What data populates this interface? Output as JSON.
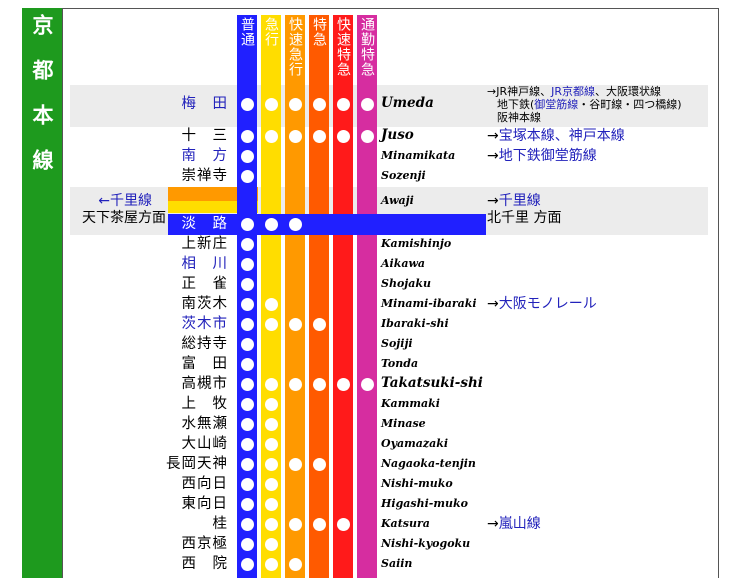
{
  "line_name": "京都本線",
  "train_types": [
    "普通",
    "急行",
    "快速急行",
    "特急",
    "快速特急",
    "通勤特急"
  ],
  "stations": [
    {
      "name": "梅　田",
      "link": true,
      "romaji": "Umeda",
      "stops": [
        true,
        true,
        true,
        true,
        true,
        true
      ],
      "transfers": [
        [
          {
            "text": "→JR神戸線、"
          },
          {
            "text": "JR京都線",
            "link": true
          },
          {
            "text": "、大阪環状線"
          }
        ],
        [
          {
            "text": "地下鉄("
          },
          {
            "text": "御堂筋線",
            "link": true
          },
          {
            "text": "・谷町線・四つ橋線)"
          }
        ],
        [
          {
            "text": "阪神本線"
          }
        ]
      ]
    },
    {
      "name": "十　三",
      "romaji": "Juso",
      "stops": [
        true,
        true,
        true,
        true,
        true,
        true
      ],
      "transfers": [
        [
          {
            "text": "→"
          },
          {
            "text": "宝塚本線、神戸本線",
            "link": true
          }
        ]
      ]
    },
    {
      "name": "南　方",
      "link": true,
      "romaji": "Minamikata",
      "stops": [
        true,
        false,
        false,
        false,
        false,
        false
      ],
      "transfers": [
        [
          {
            "text": "→"
          },
          {
            "text": "地下鉄御堂筋線",
            "link": true
          }
        ]
      ]
    },
    {
      "name": "崇禅寺",
      "romaji": "Sozenji",
      "stops": [
        true,
        false,
        false,
        false,
        false,
        false
      ]
    },
    {
      "name": "淡　路",
      "link": true,
      "romaji": "Awaji",
      "stops": [
        true,
        true,
        true,
        false,
        false,
        false
      ],
      "left_transfers": [
        [
          {
            "text": "←千里線",
            "link": true
          }
        ],
        [
          {
            "text": "天下茶屋方面"
          }
        ]
      ],
      "transfers": [
        [
          {
            "text": "→"
          },
          {
            "text": "千里線",
            "link": true
          }
        ],
        [
          {
            "text": "北千里 方面"
          }
        ]
      ]
    },
    {
      "name": "上新庄",
      "romaji": "Kamishinjo",
      "stops": [
        true,
        false,
        false,
        false,
        false,
        false
      ]
    },
    {
      "name": "相　川",
      "link": true,
      "romaji": "Aikawa",
      "stops": [
        true,
        false,
        false,
        false,
        false,
        false
      ]
    },
    {
      "name": "正　雀",
      "romaji": "Shojaku",
      "stops": [
        true,
        false,
        false,
        false,
        false,
        false
      ]
    },
    {
      "name": "南茨木",
      "romaji": "Minami-ibaraki",
      "stops": [
        true,
        true,
        false,
        false,
        false,
        false
      ],
      "transfers": [
        [
          {
            "text": "→"
          },
          {
            "text": "大阪モノレール",
            "link": true
          }
        ]
      ]
    },
    {
      "name": "茨木市",
      "link": true,
      "romaji": "Ibaraki-shi",
      "stops": [
        true,
        true,
        true,
        true,
        false,
        false
      ]
    },
    {
      "name": "総持寺",
      "romaji": "Sojiji",
      "stops": [
        true,
        false,
        false,
        false,
        false,
        false
      ]
    },
    {
      "name": "富　田",
      "romaji": "Tonda",
      "stops": [
        true,
        false,
        false,
        false,
        false,
        false
      ]
    },
    {
      "name": "高槻市",
      "romaji": "Takatsuki-shi",
      "stops": [
        true,
        true,
        true,
        true,
        true,
        true
      ]
    },
    {
      "name": "上　牧",
      "romaji": "Kammaki",
      "stops": [
        true,
        true,
        false,
        false,
        false,
        false
      ]
    },
    {
      "name": "水無瀬",
      "romaji": "Minase",
      "stops": [
        true,
        true,
        false,
        false,
        false,
        false
      ]
    },
    {
      "name": "大山崎",
      "romaji": "Oyamazaki",
      "stops": [
        true,
        true,
        false,
        false,
        false,
        false
      ]
    },
    {
      "name": "長岡天神",
      "romaji": "Nagaoka-tenjin",
      "stops": [
        true,
        true,
        true,
        true,
        false,
        false
      ]
    },
    {
      "name": "西向日",
      "romaji": "Nishi-muko",
      "stops": [
        true,
        true,
        false,
        false,
        false,
        false
      ]
    },
    {
      "name": "東向日",
      "romaji": "Higashi-muko",
      "stops": [
        true,
        true,
        false,
        false,
        false,
        false
      ]
    },
    {
      "name": "桂",
      "romaji": "Katsura",
      "stops": [
        true,
        true,
        true,
        true,
        true,
        false
      ],
      "transfers": [
        [
          {
            "text": "→"
          },
          {
            "text": "嵐山線",
            "link": true
          }
        ]
      ]
    },
    {
      "name": "西京極",
      "romaji": "Nishi-kyogoku",
      "stops": [
        true,
        true,
        false,
        false,
        false,
        false
      ]
    },
    {
      "name": "西　院",
      "romaji": "Saiin",
      "stops": [
        true,
        true,
        true,
        false,
        false,
        false
      ]
    }
  ]
}
